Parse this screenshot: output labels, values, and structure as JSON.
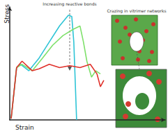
{
  "chart_data": {
    "type": "line",
    "x_label": "Strain",
    "y_label": "Stress",
    "annotations": [
      "Increasing reactive bonds",
      "Crazing in vitrimer networks"
    ],
    "xlim": [
      0,
      100
    ],
    "ylim": [
      0,
      100
    ],
    "tick_labels": false,
    "grid": false,
    "series": [
      {
        "color": "#2ec4d6",
        "x": [
          0.9,
          4.4,
          7.0,
          12.3,
          18.9,
          25.4,
          32.0,
          37.7,
          39.9,
          41.2,
          43.0
        ],
        "values": [
          1.1,
          46.3,
          49.2,
          43.5,
          54.8,
          68.9,
          83.1,
          92.7,
          91.5,
          68.9,
          0
        ]
      },
      {
        "color": "#7ee06a",
        "x": [
          0.9,
          4.4,
          7.9,
          14.5,
          21.1,
          27.6,
          34.2,
          40.8,
          45.2,
          47.4,
          49.6,
          52.6,
          55.3,
          58.3
        ],
        "values": [
          1.1,
          46.3,
          49.2,
          43.5,
          54.8,
          66.1,
          74.6,
          80.2,
          83.1,
          68.9,
          52.0,
          37.9,
          43.5,
          40.7
        ]
      },
      {
        "color": "#e0302a",
        "x": [
          0.9,
          4.4,
          7.9,
          14.5,
          18.9,
          25.4,
          32.0,
          38.6,
          45.2,
          51.8,
          56.1,
          58.3,
          60.5
        ],
        "values": [
          1.1,
          46.3,
          52.0,
          43.5,
          45.2,
          49.2,
          46.3,
          48.0,
          46.3,
          49.2,
          40.7,
          29.4,
          35.0
        ]
      }
    ]
  }
}
